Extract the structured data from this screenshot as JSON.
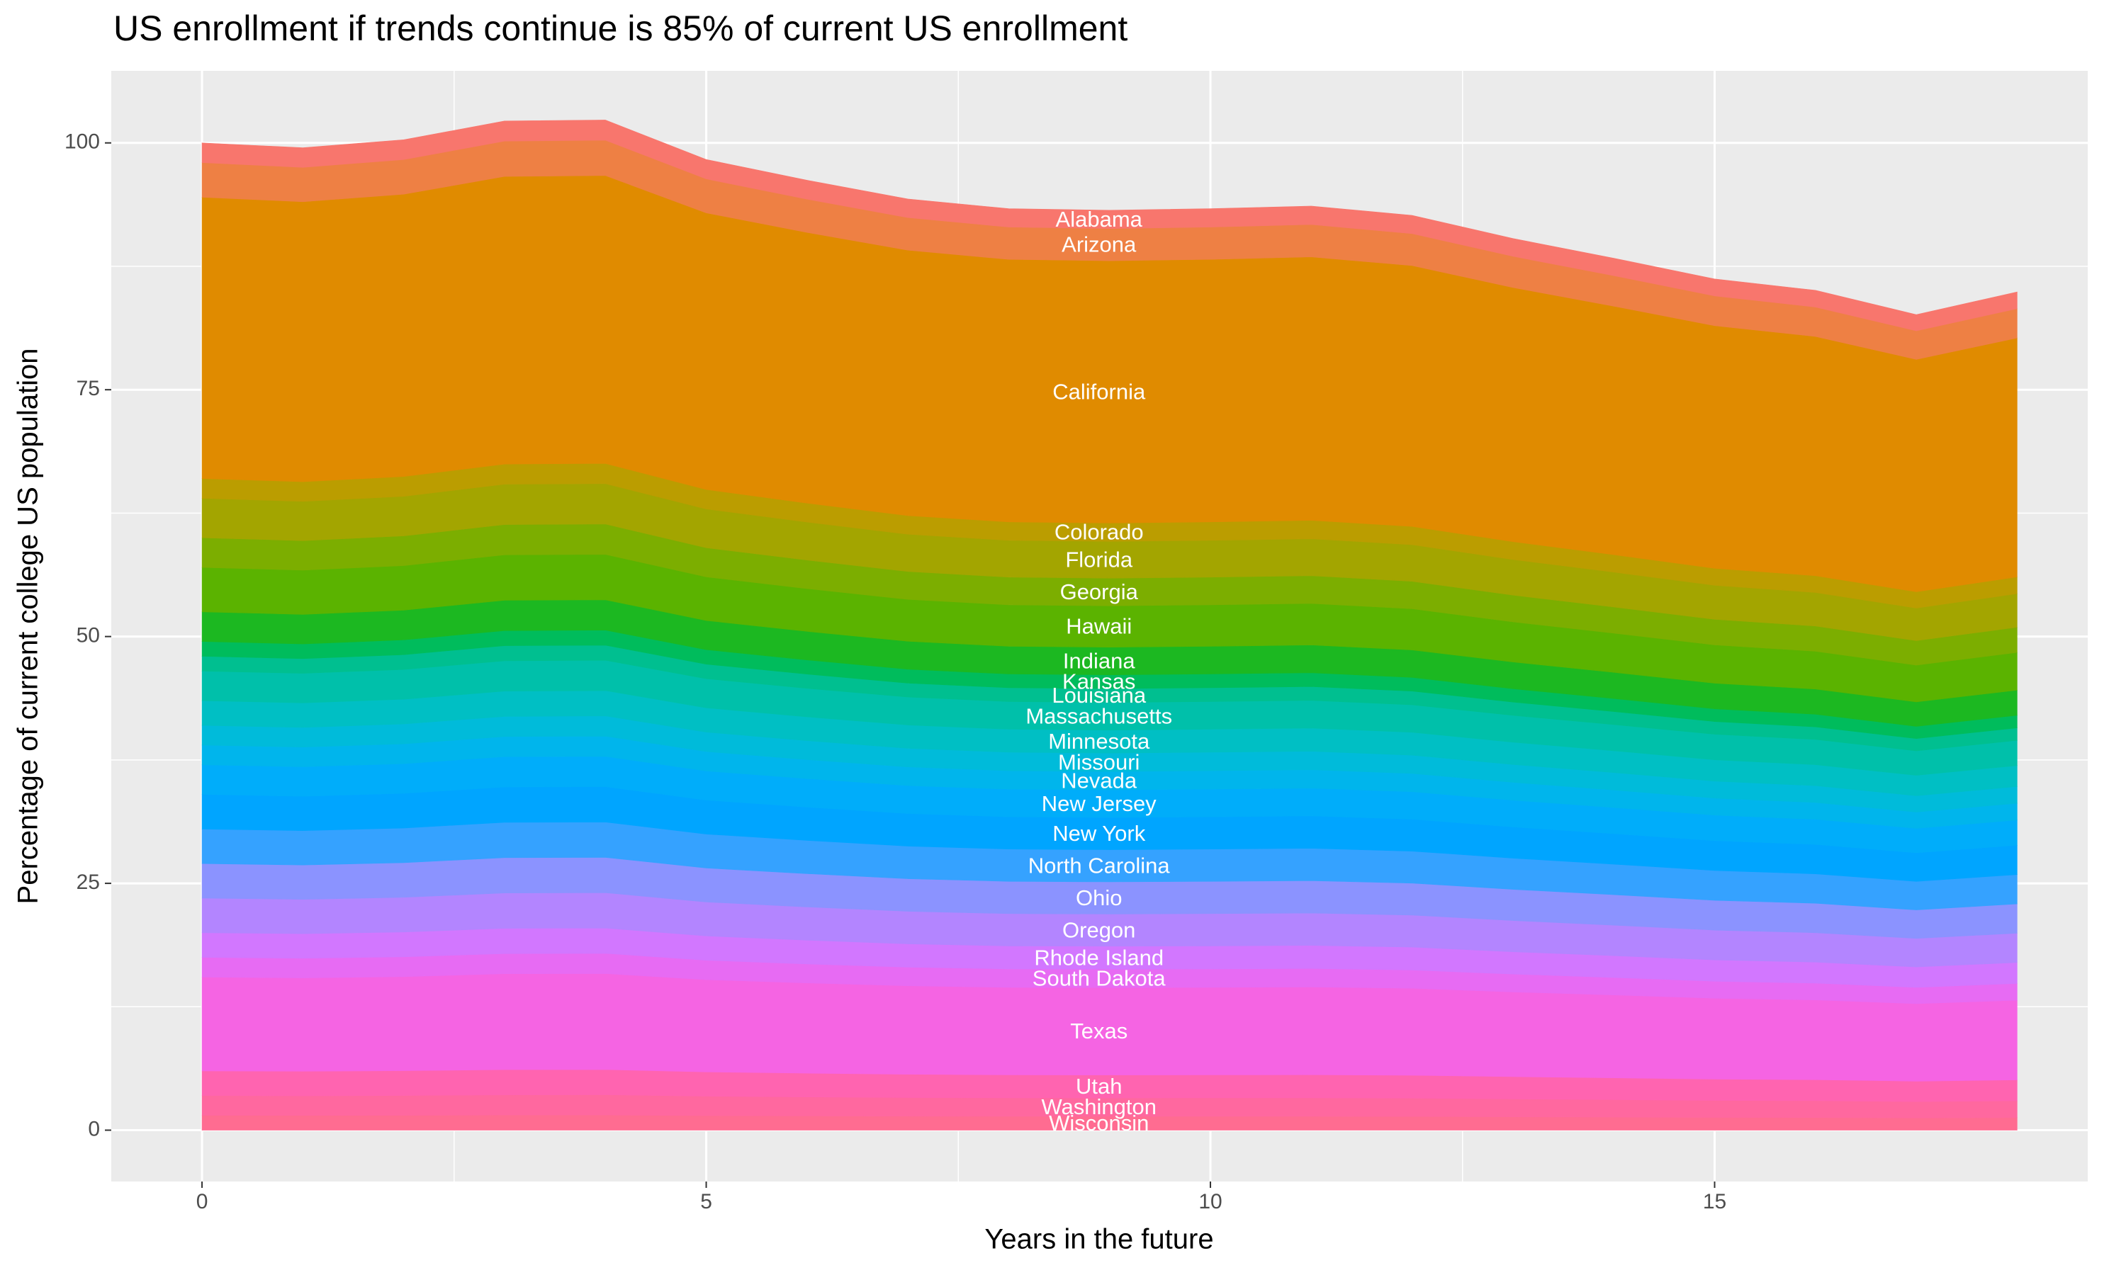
{
  "chart_data": {
    "type": "stacked-area",
    "title": "US enrollment if trends continue is 85% of current US enrollment",
    "x_label": "Years in the future",
    "y_label": "Percentage of current college US population",
    "x": [
      0,
      1,
      2,
      3,
      4,
      5,
      6,
      7,
      8,
      9,
      10,
      11,
      12,
      13,
      14,
      15,
      16,
      17,
      18
    ],
    "xlim": [
      -0.9,
      18.7
    ],
    "xticks": [
      0,
      5,
      10,
      15
    ],
    "ylim": [
      -5.2,
      107.3
    ],
    "yticks": [
      0,
      25,
      50,
      75,
      100
    ],
    "grid": true,
    "series": [
      {
        "name": "Wisconsin",
        "color": "#FF6C91",
        "values": [
          1.5,
          1.49,
          1.5,
          1.53,
          1.53,
          1.47,
          1.44,
          1.41,
          1.4,
          1.4,
          1.4,
          1.4,
          1.39,
          1.35,
          1.32,
          1.29,
          1.28,
          1.24,
          1.27
        ]
      },
      {
        "name": "Washington",
        "color": "#FF689F",
        "values": [
          2,
          1.99,
          2.01,
          2.04,
          2.05,
          1.97,
          1.92,
          1.89,
          1.87,
          1.86,
          1.87,
          1.87,
          1.85,
          1.81,
          1.77,
          1.72,
          1.7,
          1.65,
          1.7
        ]
      },
      {
        "name": "Utah",
        "color": "#FF64B0",
        "values": [
          2.5,
          2.49,
          2.51,
          2.56,
          2.56,
          2.46,
          2.41,
          2.36,
          2.33,
          2.33,
          2.33,
          2.34,
          2.32,
          2.26,
          2.21,
          2.16,
          2.13,
          2.07,
          2.12
        ]
      },
      {
        "name": "Texas",
        "color": "#F564E3",
        "values": [
          9.5,
          9.45,
          9.53,
          9.71,
          9.72,
          9.34,
          9.14,
          8.96,
          8.86,
          8.85,
          8.86,
          8.89,
          8.81,
          8.58,
          8.39,
          8.19,
          8.08,
          7.85,
          8.07
        ]
      },
      {
        "name": "South Dakota",
        "color": "#E76BF3",
        "values": [
          2,
          1.99,
          2.01,
          2.04,
          2.05,
          1.97,
          1.92,
          1.89,
          1.87,
          1.86,
          1.87,
          1.87,
          1.85,
          1.81,
          1.77,
          1.72,
          1.7,
          1.65,
          1.7
        ]
      },
      {
        "name": "Rhode Island",
        "color": "#D277FF",
        "values": [
          2.5,
          2.49,
          2.51,
          2.56,
          2.56,
          2.46,
          2.41,
          2.36,
          2.33,
          2.33,
          2.33,
          2.34,
          2.32,
          2.26,
          2.21,
          2.16,
          2.13,
          2.07,
          2.12
        ]
      },
      {
        "name": "Oregon",
        "color": "#B385FF",
        "values": [
          3.5,
          3.48,
          3.51,
          3.58,
          3.58,
          3.44,
          3.37,
          3.3,
          3.27,
          3.26,
          3.27,
          3.28,
          3.24,
          3.16,
          3.09,
          3.02,
          2.98,
          2.89,
          2.97
        ]
      },
      {
        "name": "Ohio",
        "color": "#8B93FF",
        "values": [
          3.5,
          3.48,
          3.51,
          3.58,
          3.58,
          3.44,
          3.37,
          3.3,
          3.27,
          3.26,
          3.27,
          3.28,
          3.24,
          3.16,
          3.09,
          3.02,
          2.98,
          2.89,
          2.97
        ]
      },
      {
        "name": "North Carolina",
        "color": "#35A2FF",
        "values": [
          3.5,
          3.48,
          3.51,
          3.58,
          3.58,
          3.44,
          3.37,
          3.3,
          3.27,
          3.26,
          3.27,
          3.28,
          3.24,
          3.16,
          3.09,
          3.02,
          2.98,
          2.89,
          2.97
        ]
      },
      {
        "name": "New York",
        "color": "#00A5FF",
        "values": [
          3.5,
          3.48,
          3.51,
          3.58,
          3.58,
          3.44,
          3.37,
          3.3,
          3.27,
          3.26,
          3.27,
          3.28,
          3.24,
          3.16,
          3.09,
          3.02,
          2.98,
          2.89,
          2.97
        ]
      },
      {
        "name": "New Jersey",
        "color": "#00ADFA",
        "values": [
          3,
          2.99,
          3.01,
          3.07,
          3.07,
          2.95,
          2.89,
          2.83,
          2.8,
          2.8,
          2.8,
          2.81,
          2.78,
          2.71,
          2.65,
          2.59,
          2.55,
          2.48,
          2.55
        ]
      },
      {
        "name": "Nevada",
        "color": "#00B5EC",
        "values": [
          2,
          1.99,
          2.01,
          2.04,
          2.05,
          1.97,
          1.92,
          1.89,
          1.87,
          1.86,
          1.87,
          1.87,
          1.85,
          1.81,
          1.77,
          1.72,
          1.7,
          1.65,
          1.7
        ]
      },
      {
        "name": "Missouri",
        "color": "#00BBDA",
        "values": [
          2,
          1.99,
          2.01,
          2.04,
          2.05,
          1.97,
          1.92,
          1.89,
          1.87,
          1.86,
          1.87,
          1.87,
          1.85,
          1.81,
          1.77,
          1.72,
          1.7,
          1.65,
          1.7
        ]
      },
      {
        "name": "Minnesota",
        "color": "#00BFC4",
        "values": [
          2.5,
          2.49,
          2.51,
          2.56,
          2.56,
          2.46,
          2.41,
          2.36,
          2.33,
          2.33,
          2.33,
          2.34,
          2.32,
          2.26,
          2.21,
          2.16,
          2.13,
          2.07,
          2.12
        ]
      },
      {
        "name": "Massachusetts",
        "color": "#00C0AA",
        "values": [
          3,
          2.99,
          3.01,
          3.07,
          3.07,
          2.95,
          2.89,
          2.83,
          2.8,
          2.8,
          2.8,
          2.81,
          2.78,
          2.71,
          2.65,
          2.59,
          2.55,
          2.48,
          2.55
        ]
      },
      {
        "name": "Louisiana",
        "color": "#00BF90",
        "values": [
          1.5,
          1.49,
          1.5,
          1.53,
          1.53,
          1.47,
          1.44,
          1.41,
          1.4,
          1.4,
          1.4,
          1.4,
          1.39,
          1.35,
          1.32,
          1.29,
          1.28,
          1.24,
          1.27
        ]
      },
      {
        "name": "Kansas",
        "color": "#00BC5C",
        "values": [
          1.5,
          1.49,
          1.5,
          1.53,
          1.53,
          1.47,
          1.44,
          1.41,
          1.4,
          1.4,
          1.4,
          1.4,
          1.39,
          1.35,
          1.32,
          1.29,
          1.28,
          1.24,
          1.27
        ]
      },
      {
        "name": "Indiana",
        "color": "#1CB821",
        "values": [
          3,
          2.99,
          3.01,
          3.07,
          3.07,
          2.95,
          2.89,
          2.83,
          2.8,
          2.8,
          2.8,
          2.81,
          2.78,
          2.71,
          2.65,
          2.59,
          2.55,
          2.48,
          2.55
        ]
      },
      {
        "name": "Hawaii",
        "color": "#5BB300",
        "values": [
          4.5,
          4.48,
          4.51,
          4.6,
          4.6,
          4.42,
          4.33,
          4.24,
          4.2,
          4.19,
          4.2,
          4.21,
          4.17,
          4.06,
          3.97,
          3.88,
          3.83,
          3.72,
          3.82
        ]
      },
      {
        "name": "Georgia",
        "color": "#7CAE00",
        "values": [
          3,
          2.99,
          3.01,
          3.07,
          3.07,
          2.95,
          2.89,
          2.83,
          2.8,
          2.8,
          2.8,
          2.81,
          2.78,
          2.71,
          2.65,
          2.59,
          2.55,
          2.48,
          2.55
        ]
      },
      {
        "name": "Florida",
        "color": "#A3A500",
        "values": [
          4,
          3.98,
          4.01,
          4.09,
          4.09,
          3.93,
          3.85,
          3.77,
          3.73,
          3.73,
          3.73,
          3.74,
          3.71,
          3.61,
          3.53,
          3.45,
          3.4,
          3.3,
          3.4
        ]
      },
      {
        "name": "Colorado",
        "color": "#BB9D00",
        "values": [
          2,
          1.99,
          2.01,
          2.04,
          2.05,
          1.97,
          1.92,
          1.89,
          1.87,
          1.86,
          1.87,
          1.87,
          1.85,
          1.81,
          1.77,
          1.72,
          1.7,
          1.65,
          1.7
        ]
      },
      {
        "name": "California",
        "color": "#E08B00",
        "values": [
          28.5,
          28.36,
          28.59,
          29.13,
          29.16,
          28.02,
          27.42,
          26.88,
          26.59,
          26.56,
          26.59,
          26.68,
          26.42,
          25.74,
          25.17,
          24.57,
          24.23,
          23.54,
          24.2
        ]
      },
      {
        "name": "Arizona",
        "color": "#EE8044",
        "values": [
          3.5,
          3.48,
          3.51,
          3.58,
          3.58,
          3.44,
          3.37,
          3.3,
          3.27,
          3.26,
          3.27,
          3.28,
          3.24,
          3.16,
          3.09,
          3.02,
          2.98,
          2.89,
          2.97
        ]
      },
      {
        "name": "Alabama",
        "color": "#F8766D",
        "values": [
          2,
          1.99,
          2.01,
          2.04,
          2.05,
          1.97,
          1.92,
          1.89,
          1.87,
          1.86,
          1.87,
          1.87,
          1.85,
          1.81,
          1.77,
          1.72,
          1.7,
          1.65,
          1.7
        ]
      }
    ]
  }
}
